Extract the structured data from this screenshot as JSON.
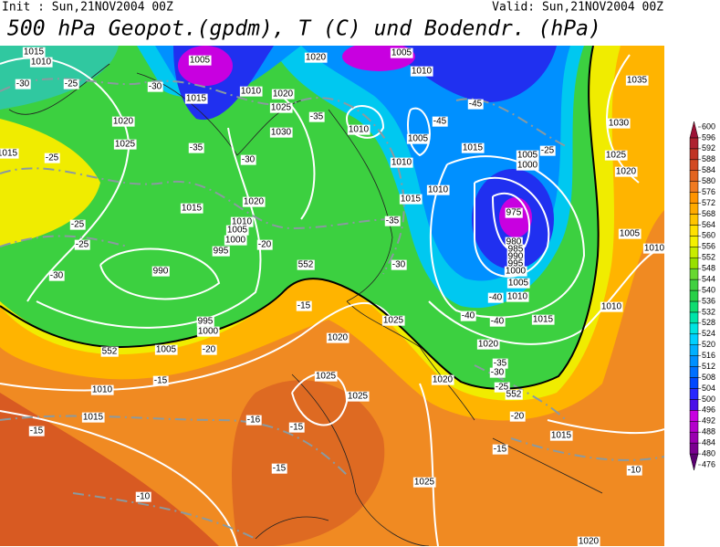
{
  "header": {
    "init": "Init : Sun,21NOV2004 00Z",
    "valid": "Valid: Sun,21NOV2004 00Z",
    "title": "500 hPa Geopot.(gpdm), T (C) und Bodendr. (hPa)"
  },
  "colorbar": {
    "ticks": [
      476,
      480,
      484,
      488,
      492,
      496,
      500,
      504,
      508,
      512,
      516,
      520,
      524,
      528,
      532,
      536,
      540,
      544,
      548,
      552,
      556,
      560,
      564,
      568,
      572,
      576,
      580,
      584,
      588,
      592,
      596,
      600
    ],
    "colors": [
      "#5a0070",
      "#7a0090",
      "#9a00b0",
      "#b400cc",
      "#c800e0",
      "#4a10e8",
      "#2828ff",
      "#0048ff",
      "#0070ff",
      "#0090ff",
      "#00b0ff",
      "#00d0ff",
      "#00e4e0",
      "#00e4a8",
      "#10dc70",
      "#28d048",
      "#40d040",
      "#68d830",
      "#98e000",
      "#c8ec00",
      "#f4f000",
      "#ffe000",
      "#ffc400",
      "#ffaa00",
      "#ff9400",
      "#f07a20",
      "#e26420",
      "#d24a22",
      "#c03424",
      "#ae2230",
      "#9c1236"
    ]
  },
  "isobar_labels": [
    1015,
    1010,
    1015,
    1010,
    1020,
    1025,
    1030,
    1020,
    1025,
    1015,
    1015,
    1010,
    1005,
    1000,
    995,
    990,
    995,
    1000,
    1005,
    1020,
    1020,
    1005,
    1010,
    1010,
    1005,
    1015,
    1005,
    1000,
    1010,
    1015,
    1010,
    975,
    980,
    985,
    990,
    995,
    1000,
    1005,
    1010,
    1015,
    1025,
    1020,
    1020,
    1035,
    1030,
    1025,
    1020,
    1005,
    1010,
    1010,
    1025,
    1025,
    1020,
    1010,
    1015,
    1015,
    1025,
    1020,
    1005
  ],
  "temperature_labels": [
    -30,
    -25,
    -30,
    -35,
    -30,
    -35,
    -25,
    -25,
    -25,
    -30,
    -20,
    -35,
    -30,
    -45,
    -45,
    -25,
    -40,
    -40,
    -40,
    -35,
    -30,
    -25,
    -20,
    -20,
    -15,
    -15,
    -15,
    -16,
    -15,
    -15,
    -15,
    -10,
    -10
  ],
  "height_labels": [
    552,
    552,
    552
  ]
}
